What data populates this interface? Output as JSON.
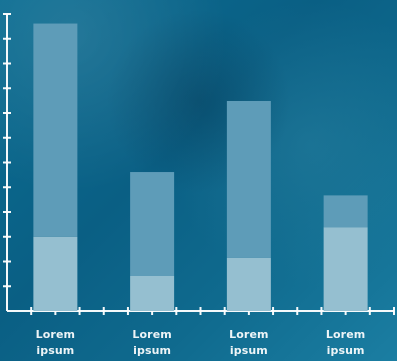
{
  "chart_data": {
    "type": "bar",
    "categories": [
      [
        "Lorem",
        "ipsum"
      ],
      [
        "Lorem",
        "ipsum"
      ],
      [
        "Lorem",
        "ipsum"
      ],
      [
        "Lorem",
        "ipsum"
      ]
    ],
    "series": [
      {
        "values": [
          70,
          33,
          50,
          79
        ]
      },
      {
        "values": [
          201,
          98,
          148,
          30
        ]
      }
    ],
    "ylim": [
      0,
      280
    ],
    "grid": false,
    "colors": {
      "base": "#95bfd0",
      "top": "#5e9cb8",
      "axis": "#ffffff",
      "text": "#ffffff"
    }
  }
}
